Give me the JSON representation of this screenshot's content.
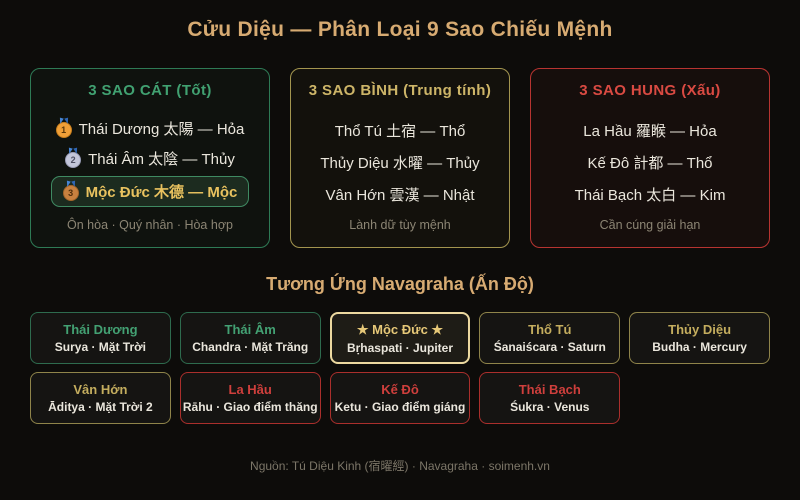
{
  "title": "Cửu Diệu — Phân Loại 9 Sao Chiếu Mệnh",
  "colors": {
    "background": "#0d0c0a",
    "gold_accent": "#d7ab72",
    "good_green": "#41a171",
    "neutral_khaki": "#cdb568",
    "bad_red": "#d94a42",
    "highlight_gold": "#e9c25f"
  },
  "groups": [
    {
      "title": "3 SAO CÁT (Tốt)",
      "items": [
        {
          "medal": "1",
          "medal_name": "gold",
          "text": "Thái Dương 太陽 — Hỏa"
        },
        {
          "medal": "2",
          "medal_name": "silver",
          "text": "Thái Âm 太陰 — Thủy"
        },
        {
          "medal": "3",
          "medal_name": "bronze",
          "text": "Mộc Đức 木德 — Mộc",
          "highlighted": true
        }
      ],
      "caption": "Ôn hòa · Quý nhân · Hòa hợp"
    },
    {
      "title": "3 SAO BÌNH (Trung tính)",
      "items": [
        {
          "text": "Thổ Tú 土宿 — Thổ"
        },
        {
          "text": "Thủy Diệu 水曜 — Thủy"
        },
        {
          "text": "Vân Hớn 雲漢 — Nhật"
        }
      ],
      "caption": "Lành dữ tùy mệnh"
    },
    {
      "title": "3 SAO HUNG (Xấu)",
      "items": [
        {
          "text": "La Hầu 羅睺 — Hỏa"
        },
        {
          "text": "Kế Đô 計都 — Thổ"
        },
        {
          "text": "Thái Bạch 太白 — Kim"
        }
      ],
      "caption": "Cần cúng giải hạn"
    }
  ],
  "navagraha": {
    "title": "Tương Ứng Navagraha (Ấn Độ)",
    "cards": [
      {
        "name": "Thái Dương",
        "detail": "Surya · Mặt Trời",
        "type": "good"
      },
      {
        "name": "Thái Âm",
        "detail": "Chandra · Mặt Trăng",
        "type": "good"
      },
      {
        "name": "★ Mộc Đức ★",
        "detail": "Bṛhaspati · Jupiter",
        "type": "gold"
      },
      {
        "name": "Thổ Tú",
        "detail": "Śanaiścara · Saturn",
        "type": "neutral"
      },
      {
        "name": "Thủy Diệu",
        "detail": "Budha · Mercury",
        "type": "neutral"
      },
      {
        "name": "Vân Hớn",
        "detail": "Āditya · Mặt Trời 2",
        "type": "neutral"
      },
      {
        "name": "La Hầu",
        "detail": "Rāhu · Giao điểm thăng",
        "type": "bad"
      },
      {
        "name": "Kế Đô",
        "detail": "Ketu · Giao điểm giáng",
        "type": "bad"
      },
      {
        "name": "Thái Bạch",
        "detail": "Śukra · Venus",
        "type": "bad"
      }
    ]
  },
  "footer": "Nguồn: Tú Diệu Kinh (宿曜經) · Navagraha · soimenh.vn"
}
